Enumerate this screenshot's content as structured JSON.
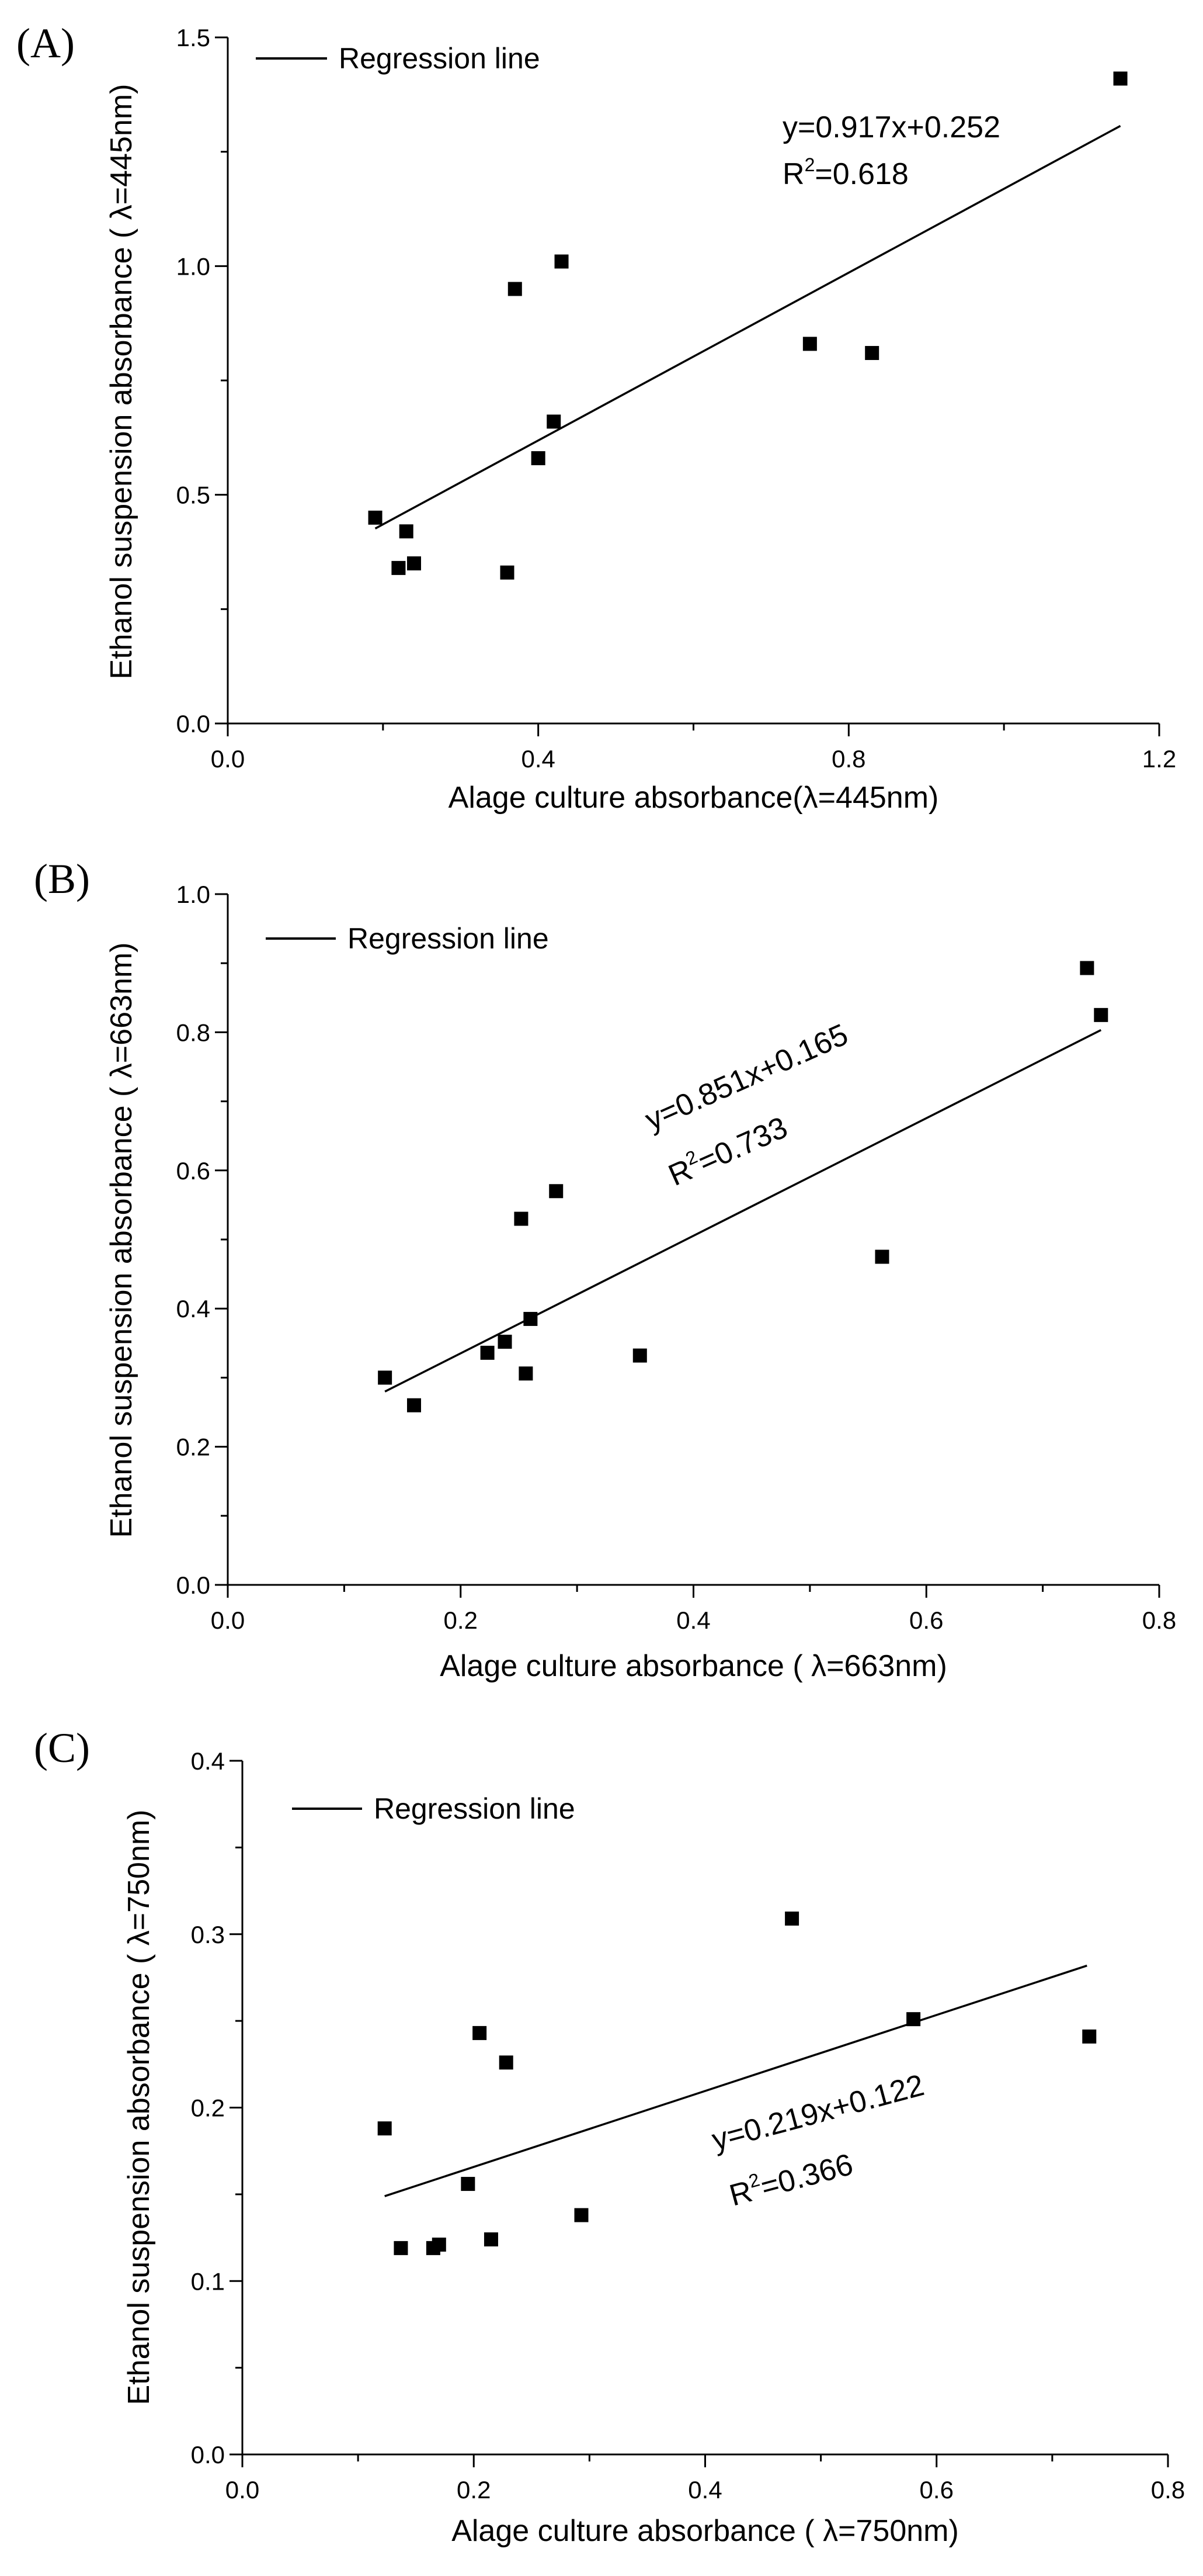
{
  "chart_data": [
    {
      "type": "scatter",
      "panel": "(A)",
      "xlabel": "Alage culture absorbance(λ=445nm)",
      "ylabel": "Ethanol suspension absorbance ( λ=445nm)",
      "xlim": [
        0.0,
        1.2
      ],
      "ylim": [
        0.0,
        1.5
      ],
      "xticks": [
        0.0,
        0.4,
        0.8,
        1.2
      ],
      "xtick_labels": [
        "0.0",
        "0.4",
        "0.8",
        "1.2"
      ],
      "yticks": [
        0.0,
        0.5,
        1.0,
        1.5
      ],
      "ytick_labels": [
        "0.0",
        "0.5",
        "1.0",
        "1.5"
      ],
      "x_minor_step": 0.2,
      "y_minor_step": 0.25,
      "legend": "Regression line",
      "equation": "y=0.917x+0.252",
      "r2_prefix": "R",
      "r2_sup": "2",
      "r2_value": "=0.618",
      "label_angle": 0,
      "fit": {
        "slope": 0.917,
        "intercept": 0.252,
        "x_range": [
          0.19,
          1.15
        ]
      },
      "series": [
        {
          "name": "data",
          "x": [
            0.19,
            0.22,
            0.23,
            0.24,
            0.36,
            0.37,
            0.4,
            0.42,
            0.43,
            0.75,
            0.83,
            1.15
          ],
          "y": [
            0.45,
            0.34,
            0.42,
            0.35,
            0.33,
            0.95,
            0.58,
            0.66,
            1.01,
            0.83,
            0.81,
            1.41
          ]
        }
      ]
    },
    {
      "type": "scatter",
      "panel": "(B)",
      "xlabel": "Alage culture absorbance ( λ=663nm)",
      "ylabel": "Ethanol suspension absorbance ( λ=663nm)",
      "xlim": [
        0.0,
        0.8
      ],
      "ylim": [
        0.0,
        1.0
      ],
      "xticks": [
        0.0,
        0.2,
        0.4,
        0.6,
        0.8
      ],
      "xtick_labels": [
        "0.0",
        "0.2",
        "0.4",
        "0.6",
        "0.8"
      ],
      "yticks": [
        0.0,
        0.2,
        0.4,
        0.6,
        0.8,
        1.0
      ],
      "ytick_labels": [
        "0.0",
        "0.2",
        "0.4",
        "0.6",
        "0.8",
        "1.0"
      ],
      "x_minor_step": 0.1,
      "y_minor_step": 0.1,
      "legend": "Regression line",
      "equation": "y=0.851x+0.165",
      "r2_prefix": "R",
      "r2_sup": "2",
      "r2_value": "=0.733",
      "label_angle": -24,
      "fit": {
        "slope": 0.851,
        "intercept": 0.165,
        "x_range": [
          0.135,
          0.75
        ]
      },
      "series": [
        {
          "name": "data",
          "x": [
            0.135,
            0.16,
            0.223,
            0.238,
            0.252,
            0.256,
            0.26,
            0.282,
            0.354,
            0.562,
            0.738,
            0.75
          ],
          "y": [
            0.3,
            0.26,
            0.336,
            0.352,
            0.53,
            0.306,
            0.385,
            0.57,
            0.332,
            0.475,
            0.893,
            0.825
          ]
        }
      ]
    },
    {
      "type": "scatter",
      "panel": "(C)",
      "xlabel": "Alage culture absorbance ( λ=750nm)",
      "ylabel": "Ethanol suspension absorbance ( λ=750nm)",
      "xlim": [
        0.0,
        0.8
      ],
      "ylim": [
        0.0,
        0.4
      ],
      "xticks": [
        0.0,
        0.2,
        0.4,
        0.6,
        0.8
      ],
      "xtick_labels": [
        "0.0",
        "0.2",
        "0.4",
        "0.6",
        "0.8"
      ],
      "yticks": [
        0.0,
        0.1,
        0.2,
        0.3,
        0.4
      ],
      "ytick_labels": [
        "0.0",
        "0.1",
        "0.2",
        "0.3",
        "0.4"
      ],
      "x_minor_step": 0.1,
      "y_minor_step": 0.05,
      "legend": "Regression line",
      "equation": "y=0.219x+0.122",
      "r2_prefix": "R",
      "r2_sup": "2",
      "r2_value": "=0.366",
      "label_angle": -15,
      "fit": {
        "slope": 0.219,
        "intercept": 0.122,
        "x_range": [
          0.123,
          0.73
        ]
      },
      "series": [
        {
          "name": "data",
          "x": [
            0.123,
            0.137,
            0.165,
            0.17,
            0.195,
            0.205,
            0.215,
            0.228,
            0.293,
            0.475,
            0.58,
            0.732
          ],
          "y": [
            0.188,
            0.119,
            0.119,
            0.121,
            0.156,
            0.243,
            0.124,
            0.226,
            0.138,
            0.309,
            0.251,
            0.241
          ]
        }
      ]
    }
  ]
}
